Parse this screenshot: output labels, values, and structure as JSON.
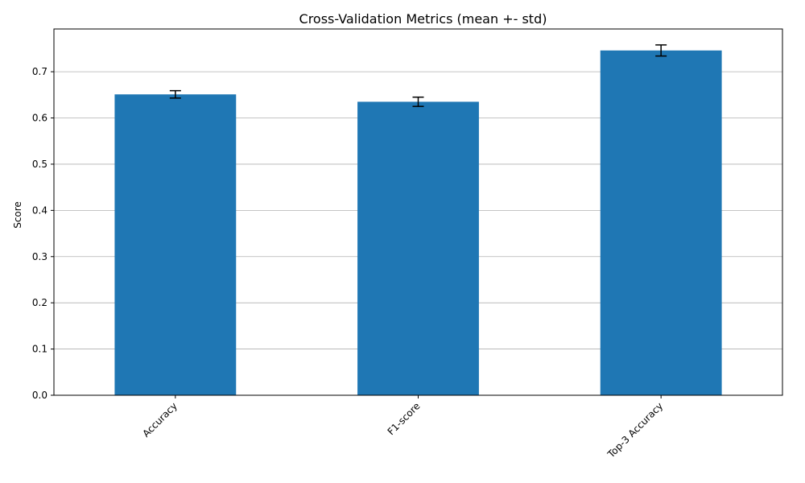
{
  "chart_data": {
    "type": "bar",
    "title": "Cross-Validation Metrics (mean +- std)",
    "xlabel": "",
    "ylabel": "Score",
    "categories": [
      "Accuracy",
      "F1-score",
      "Top-3 Accuracy"
    ],
    "values": [
      0.651,
      0.635,
      0.746
    ],
    "errors": [
      0.008,
      0.01,
      0.012
    ],
    "ylim": [
      0,
      0.7925
    ],
    "yticks": [
      "0.0",
      "0.1",
      "0.2",
      "0.3",
      "0.4",
      "0.5",
      "0.6",
      "0.7"
    ],
    "grid": "horizontal",
    "bar_color": "#1f77b4",
    "error_color": "#000000"
  }
}
